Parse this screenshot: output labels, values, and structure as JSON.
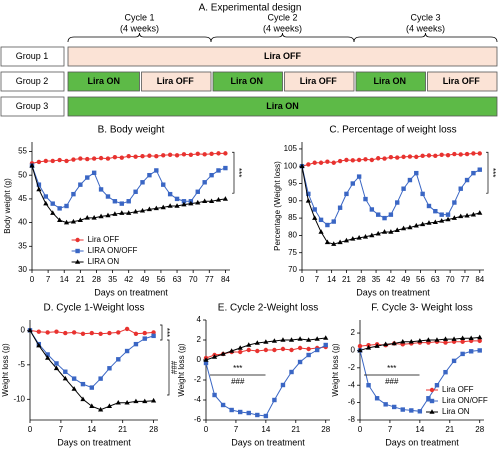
{
  "design": {
    "title": "A.  Experimental design",
    "cycles": [
      {
        "name": "Cycle 1",
        "duration": "(4 weeks)"
      },
      {
        "name": "Cycle 2",
        "duration": "(4 weeks)"
      },
      {
        "name": "Cycle 3",
        "duration": "(4 weeks)"
      }
    ],
    "groups": [
      {
        "name": "Group 1",
        "segments": [
          {
            "label": "Lira OFF",
            "color": "#fbe3d6"
          }
        ]
      },
      {
        "name": "Group 2",
        "segments": [
          {
            "label": "Lira ON",
            "color": "#5dba47"
          },
          {
            "label": "Lira OFF",
            "color": "#fbe3d6"
          },
          {
            "label": "Lira ON",
            "color": "#5dba47"
          },
          {
            "label": "Lira OFF",
            "color": "#fbe3d6"
          },
          {
            "label": "Lira ON",
            "color": "#5dba47"
          },
          {
            "label": "Lira OFF",
            "color": "#fbe3d6"
          }
        ]
      },
      {
        "name": "Group 3",
        "segments": [
          {
            "label": "Lira ON",
            "color": "#5dba47"
          }
        ]
      }
    ]
  },
  "chart_data": [
    {
      "type": "line",
      "title": "B. Body weight",
      "x_label": "Days on treatment",
      "y_label": "Body weight (g)",
      "x": [
        0,
        3,
        6,
        9,
        12,
        15,
        18,
        21,
        24,
        27,
        30,
        33,
        36,
        39,
        42,
        45,
        48,
        51,
        54,
        57,
        60,
        63,
        66,
        69,
        72,
        75,
        78,
        81,
        84
      ],
      "xlim": [
        0,
        86
      ],
      "xticks": [
        0,
        7,
        14,
        21,
        28,
        35,
        42,
        49,
        56,
        63,
        70,
        77,
        84
      ],
      "ylim": [
        30,
        57
      ],
      "yticks": [
        30,
        35,
        40,
        45,
        50,
        55
      ],
      "legend": "lower center",
      "series": [
        {
          "name": "Lira OFF",
          "color": "#e8322f",
          "marker": "circle",
          "values": [
            52.5,
            52.8,
            53,
            53,
            53.2,
            53,
            53.3,
            53.5,
            53.4,
            53.5,
            53.6,
            53.5,
            53.8,
            53.7,
            54,
            53.9,
            54,
            54.1,
            54,
            54.2,
            54.3,
            54.2,
            54.4,
            54.3,
            54.5,
            54.4,
            54.5,
            54.6,
            54.6
          ]
        },
        {
          "name": "LIRA ON/OFF",
          "color": "#3a66c4",
          "marker": "square",
          "values": [
            52,
            48,
            45.5,
            44,
            43,
            43.5,
            46,
            48,
            49.5,
            50.5,
            47,
            45.5,
            44.5,
            44,
            44.5,
            46.5,
            48.5,
            50,
            51,
            48,
            46,
            45,
            44.5,
            44.5,
            46.5,
            48.5,
            50,
            51,
            51.5
          ]
        },
        {
          "name": "LIRA ON",
          "color": "#000000",
          "marker": "triangle",
          "values": [
            52,
            47,
            44,
            42,
            40.5,
            40,
            40.2,
            40.5,
            41,
            41,
            41.3,
            41.5,
            41.8,
            42,
            42,
            42.3,
            42.5,
            42.8,
            43,
            43.2,
            43.5,
            43.5,
            43.8,
            44,
            44.2,
            44.5,
            44.5,
            44.8,
            45
          ]
        }
      ],
      "annotations": [
        "***"
      ]
    },
    {
      "type": "line",
      "title": "C. Percentage of weight loss",
      "x_label": "Days on treatment",
      "y_label": "Percentage (Weight loss)",
      "x": [
        0,
        3,
        6,
        9,
        12,
        15,
        18,
        21,
        24,
        27,
        30,
        33,
        36,
        39,
        42,
        45,
        48,
        51,
        54,
        57,
        60,
        63,
        66,
        69,
        72,
        75,
        78,
        81,
        84
      ],
      "xlim": [
        0,
        86
      ],
      "xticks": [
        0,
        7,
        14,
        21,
        28,
        35,
        42,
        49,
        56,
        63,
        70,
        77,
        84
      ],
      "ylim": [
        70,
        107
      ],
      "yticks": [
        70,
        75,
        80,
        85,
        90,
        95,
        100,
        105
      ],
      "series": [
        {
          "name": "Lira OFF",
          "color": "#e8322f",
          "marker": "circle",
          "values": [
            100,
            100.5,
            101,
            101,
            101.3,
            101,
            101.5,
            101.8,
            101.7,
            101.8,
            102,
            101.8,
            102.3,
            102.2,
            102.6,
            102.5,
            102.7,
            102.8,
            102.7,
            103,
            103.1,
            103,
            103.3,
            103.2,
            103.5,
            103.4,
            103.5,
            103.7,
            103.7
          ]
        },
        {
          "name": "Lira ON/OFF",
          "color": "#3a66c4",
          "marker": "square",
          "values": [
            100,
            92,
            87.5,
            84.5,
            83,
            84,
            88,
            92,
            95,
            97,
            90.5,
            87.5,
            86,
            85,
            86,
            89.5,
            93.5,
            96,
            98,
            92,
            88.5,
            87,
            86,
            86,
            89.5,
            93.5,
            96,
            98,
            99
          ]
        },
        {
          "name": "Lira ON",
          "color": "#000000",
          "marker": "triangle",
          "values": [
            100,
            90,
            85,
            81,
            78,
            77.5,
            78,
            78.5,
            79,
            79.3,
            79.6,
            80,
            80.5,
            81,
            81,
            81.5,
            82,
            82.3,
            82.8,
            83.2,
            83.6,
            83.8,
            84.2,
            84.6,
            85,
            85.5,
            85.7,
            86,
            86.5
          ]
        }
      ],
      "annotations": [
        "***"
      ]
    },
    {
      "type": "line",
      "title": "D. Cycle 1-Weight loss",
      "x_label": "Days on treatment",
      "y_label": "Weight loss (g)",
      "x": [
        0,
        2,
        4,
        6,
        8,
        10,
        12,
        14,
        16,
        18,
        20,
        22,
        24,
        26,
        28
      ],
      "xlim": [
        0,
        29
      ],
      "xticks": [
        0,
        7,
        14,
        21,
        28
      ],
      "ylim": [
        -13,
        1.5
      ],
      "yticks": [
        -10,
        -5,
        0
      ],
      "series": [
        {
          "name": "Lira OFF",
          "color": "#e8322f",
          "marker": "circle",
          "values": [
            0,
            -0.2,
            -0.3,
            -0.2,
            -0.4,
            -0.3,
            -0.5,
            -0.4,
            -0.5,
            -0.4,
            -0.3,
            0.2,
            -0.5,
            -0.4,
            -0.3
          ]
        },
        {
          "name": "Lira ON/OFF",
          "color": "#3a66c4",
          "marker": "square",
          "values": [
            0,
            -2,
            -3.5,
            -4.8,
            -6,
            -7,
            -7.8,
            -8.3,
            -7,
            -5.5,
            -4.2,
            -3,
            -2,
            -1.2,
            -0.8
          ]
        },
        {
          "name": "Lira ON",
          "color": "#000000",
          "marker": "triangle",
          "values": [
            0,
            -2.2,
            -4,
            -5.5,
            -7,
            -8.5,
            -10,
            -11,
            -11.5,
            -11,
            -10.5,
            -10.5,
            -10.3,
            -10.3,
            -10.2
          ]
        }
      ],
      "annotations": [
        "***",
        "###"
      ]
    },
    {
      "type": "line",
      "title": "E. Cycle 2-Weight loss",
      "x_label": "Days on treatment",
      "y_label": "Weight loss (g)",
      "x": [
        0,
        2,
        4,
        6,
        8,
        10,
        12,
        14,
        16,
        18,
        20,
        22,
        24,
        26,
        28
      ],
      "xlim": [
        0,
        29
      ],
      "xticks": [
        0,
        7,
        14,
        21,
        28
      ],
      "ylim": [
        -6,
        4
      ],
      "yticks": [
        -6,
        -4,
        -2,
        0,
        2,
        4
      ],
      "series": [
        {
          "name": "Lira OFF",
          "color": "#e8322f",
          "marker": "circle",
          "values": [
            0.2,
            0.5,
            0.6,
            0.8,
            0.8,
            1,
            0.9,
            1,
            1,
            1.1,
            1,
            1.2,
            1.1,
            1.2,
            1.3
          ]
        },
        {
          "name": "Lira ON/OFF",
          "color": "#3a66c4",
          "marker": "square",
          "values": [
            -0.3,
            -3.5,
            -4.5,
            -5,
            -5.2,
            -5.3,
            -5.5,
            -5.6,
            -4,
            -2.5,
            -1.2,
            -0.2,
            0.5,
            1,
            1.5
          ]
        },
        {
          "name": "Lira ON",
          "color": "#000000",
          "marker": "triangle",
          "values": [
            0,
            0.3,
            0.6,
            0.9,
            1.2,
            1.5,
            1.7,
            1.8,
            1.9,
            2,
            2,
            2.1,
            2,
            2.1,
            2.2
          ]
        }
      ],
      "annotations": [
        "***",
        "###"
      ]
    },
    {
      "type": "line",
      "title": "F. Cycle 3- Weight loss",
      "x_label": "Days on treatment",
      "y_label": "Weight loss (g)",
      "x": [
        0,
        2,
        4,
        6,
        8,
        10,
        12,
        14,
        16,
        18,
        20,
        22,
        24,
        26,
        28
      ],
      "xlim": [
        0,
        29
      ],
      "xticks": [
        0,
        7,
        14,
        21,
        28
      ],
      "ylim": [
        -8,
        3.5
      ],
      "yticks": [
        -8,
        -6,
        -4,
        -2,
        0,
        2
      ],
      "legend": "lower right",
      "series": [
        {
          "name": "Lira OFF",
          "color": "#e8322f",
          "marker": "circle",
          "values": [
            0.5,
            0.6,
            0.7,
            0.6,
            0.8,
            0.7,
            0.8,
            0.9,
            0.9,
            1,
            0.9,
            1,
            1,
            1.1,
            1.1
          ]
        },
        {
          "name": "Lira ON/OFF",
          "color": "#3a66c4",
          "marker": "square",
          "values": [
            0,
            -4,
            -5.5,
            -6.2,
            -6.5,
            -6.8,
            -6.9,
            -7,
            -5.5,
            -4,
            -2.5,
            -1.2,
            -0.4,
            -0.1,
            0
          ]
        },
        {
          "name": "Lira ON",
          "color": "#000000",
          "marker": "triangle",
          "values": [
            0,
            0.3,
            0.5,
            0.7,
            0.8,
            1,
            1,
            1.1,
            1.2,
            1.2,
            1.3,
            1.3,
            1.4,
            1.4,
            1.5
          ]
        }
      ],
      "annotations": [
        "***",
        "###"
      ]
    }
  ]
}
